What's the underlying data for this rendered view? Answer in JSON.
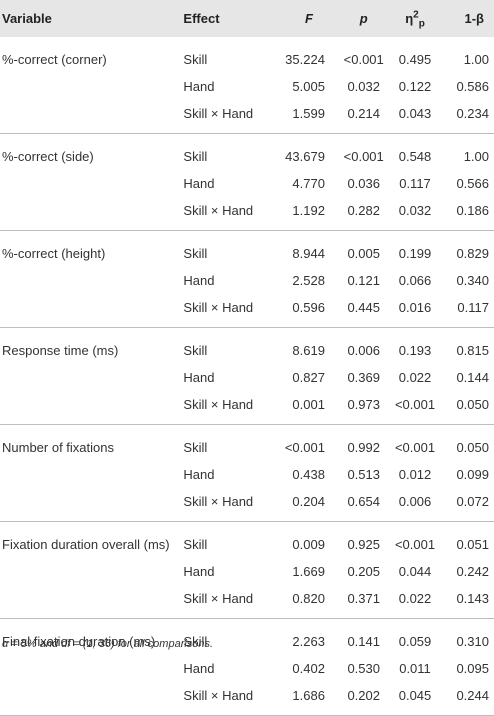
{
  "header": {
    "variable": "Variable",
    "effect": "Effect",
    "f": "F",
    "p": "p",
    "eta_base": "η",
    "eta_sup": "2",
    "eta_sub": "p",
    "power": "1-β"
  },
  "groups": [
    {
      "variable": "%-correct (corner)",
      "rows": [
        {
          "effect": "Skill",
          "f": "35.224",
          "p": "<0.001",
          "eta": "0.495",
          "power": "1.00"
        },
        {
          "effect": "Hand",
          "f": "5.005",
          "p": "0.032",
          "eta": "0.122",
          "power": "0.586"
        },
        {
          "effect": "Skill × Hand",
          "f": "1.599",
          "p": "0.214",
          "eta": "0.043",
          "power": "0.234"
        }
      ]
    },
    {
      "variable": "%-correct (side)",
      "rows": [
        {
          "effect": "Skill",
          "f": "43.679",
          "p": "<0.001",
          "eta": "0.548",
          "power": "1.00"
        },
        {
          "effect": "Hand",
          "f": "4.770",
          "p": "0.036",
          "eta": "0.117",
          "power": "0.566"
        },
        {
          "effect": "Skill × Hand",
          "f": "1.192",
          "p": "0.282",
          "eta": "0.032",
          "power": "0.186"
        }
      ]
    },
    {
      "variable": "%-correct (height)",
      "rows": [
        {
          "effect": "Skill",
          "f": "8.944",
          "p": "0.005",
          "eta": "0.199",
          "power": "0.829"
        },
        {
          "effect": "Hand",
          "f": "2.528",
          "p": "0.121",
          "eta": "0.066",
          "power": "0.340"
        },
        {
          "effect": "Skill × Hand",
          "f": "0.596",
          "p": "0.445",
          "eta": "0.016",
          "power": "0.117"
        }
      ]
    },
    {
      "variable": "Response time (ms)",
      "rows": [
        {
          "effect": "Skill",
          "f": "8.619",
          "p": "0.006",
          "eta": "0.193",
          "power": "0.815"
        },
        {
          "effect": "Hand",
          "f": "0.827",
          "p": "0.369",
          "eta": "0.022",
          "power": "0.144"
        },
        {
          "effect": "Skill × Hand",
          "f": "0.001",
          "p": "0.973",
          "eta": "<0.001",
          "power": "0.050"
        }
      ]
    },
    {
      "variable": "Number of fixations",
      "rows": [
        {
          "effect": "Skill",
          "f": "<0.001",
          "p": "0.992",
          "eta": "<0.001",
          "power": "0.050"
        },
        {
          "effect": "Hand",
          "f": "0.438",
          "p": "0.513",
          "eta": "0.012",
          "power": "0.099"
        },
        {
          "effect": "Skill × Hand",
          "f": "0.204",
          "p": "0.654",
          "eta": "0.006",
          "power": "0.072"
        }
      ]
    },
    {
      "variable": "Fixation duration overall (ms)",
      "rows": [
        {
          "effect": "Skill",
          "f": "0.009",
          "p": "0.925",
          "eta": "<0.001",
          "power": "0.051"
        },
        {
          "effect": "Hand",
          "f": "1.669",
          "p": "0.205",
          "eta": "0.044",
          "power": "0.242"
        },
        {
          "effect": "Skill × Hand",
          "f": "0.820",
          "p": "0.371",
          "eta": "0.022",
          "power": "0.143"
        }
      ]
    },
    {
      "variable": "Final fixation duration (ms)",
      "rows": [
        {
          "effect": "Skill",
          "f": "2.263",
          "p": "0.141",
          "eta": "0.059",
          "power": "0.310"
        },
        {
          "effect": "Hand",
          "f": "0.402",
          "p": "0.530",
          "eta": "0.011",
          "power": "0.095"
        },
        {
          "effect": "Skill × Hand",
          "f": "1.686",
          "p": "0.202",
          "eta": "0.045",
          "power": "0.244"
        }
      ]
    }
  ],
  "footnote": "α = 5% and df = (1, 36) for all comparisons."
}
